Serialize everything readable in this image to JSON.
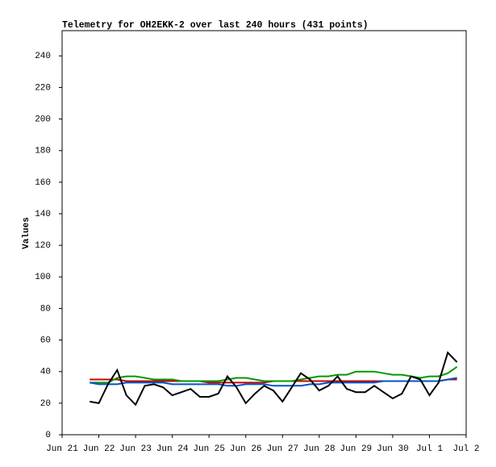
{
  "chart_data": {
    "type": "line",
    "title": "Telemetry for OH2EKK-2 over last 240 hours (431 points)",
    "y_label": "Values",
    "x": [
      0.75,
      1,
      1.25,
      1.5,
      1.75,
      2,
      2.25,
      2.5,
      2.75,
      3,
      3.25,
      3.5,
      3.75,
      4,
      4.25,
      4.5,
      4.75,
      5,
      5.25,
      5.5,
      5.75,
      6,
      6.25,
      6.5,
      6.75,
      7,
      7.25,
      7.5,
      7.75,
      8,
      8.25,
      8.5,
      8.75,
      9,
      9.25,
      9.5,
      9.75,
      10,
      10.25,
      10.5,
      10.75
    ],
    "series": [
      {
        "color": "#cc0000",
        "values": [
          35,
          35,
          35,
          35,
          34,
          34,
          34,
          34,
          34,
          34,
          34,
          34,
          34,
          33,
          33,
          33,
          33,
          33,
          33,
          33,
          34,
          34,
          34,
          34,
          34,
          34,
          34,
          34,
          34,
          34,
          34,
          34,
          34,
          34,
          34,
          34,
          34,
          34,
          34,
          35,
          35
        ]
      },
      {
        "color": "#009900",
        "values": [
          33,
          33,
          33,
          36,
          37,
          37,
          36,
          35,
          35,
          35,
          34,
          34,
          34,
          34,
          34,
          35,
          36,
          36,
          35,
          34,
          34,
          34,
          34,
          35,
          36,
          37,
          37,
          38,
          38,
          40,
          40,
          40,
          39,
          38,
          38,
          37,
          36,
          37,
          37,
          39,
          43
        ]
      },
      {
        "color": "#0055cc",
        "values": [
          33,
          32,
          32,
          32,
          33,
          33,
          33,
          33,
          33,
          32,
          32,
          32,
          32,
          32,
          32,
          31,
          31,
          32,
          32,
          32,
          31,
          31,
          31,
          31,
          32,
          32,
          33,
          33,
          33,
          33,
          33,
          33,
          34,
          34,
          34,
          34,
          34,
          34,
          34,
          35,
          36
        ]
      },
      {
        "color": "#000000",
        "values": [
          21,
          20,
          32,
          41,
          25,
          19,
          31,
          32,
          30,
          25,
          27,
          29,
          24,
          24,
          26,
          37,
          30,
          20,
          26,
          31,
          28,
          21,
          30,
          39,
          35,
          28,
          31,
          37,
          29,
          27,
          27,
          31,
          27,
          23,
          26,
          37,
          35,
          25,
          33,
          52,
          46
        ]
      }
    ],
    "xlim": [
      0,
      11
    ],
    "xticks": [
      {
        "value": 0,
        "label": "Jun 21"
      },
      {
        "value": 1,
        "label": "Jun 22"
      },
      {
        "value": 2,
        "label": "Jun 23"
      },
      {
        "value": 3,
        "label": "Jun 24"
      },
      {
        "value": 4,
        "label": "Jun 25"
      },
      {
        "value": 5,
        "label": "Jun 26"
      },
      {
        "value": 6,
        "label": "Jun 27"
      },
      {
        "value": 7,
        "label": "Jun 28"
      },
      {
        "value": 8,
        "label": "Jun 29"
      },
      {
        "value": 9,
        "label": "Jun 30"
      },
      {
        "value": 10,
        "label": "Jul 1"
      },
      {
        "value": 11,
        "label": "Jul 2"
      }
    ],
    "ylim": [
      0,
      256
    ],
    "yticks": [
      0,
      20,
      40,
      60,
      80,
      100,
      120,
      140,
      160,
      180,
      200,
      220,
      240
    ],
    "grid": false
  }
}
